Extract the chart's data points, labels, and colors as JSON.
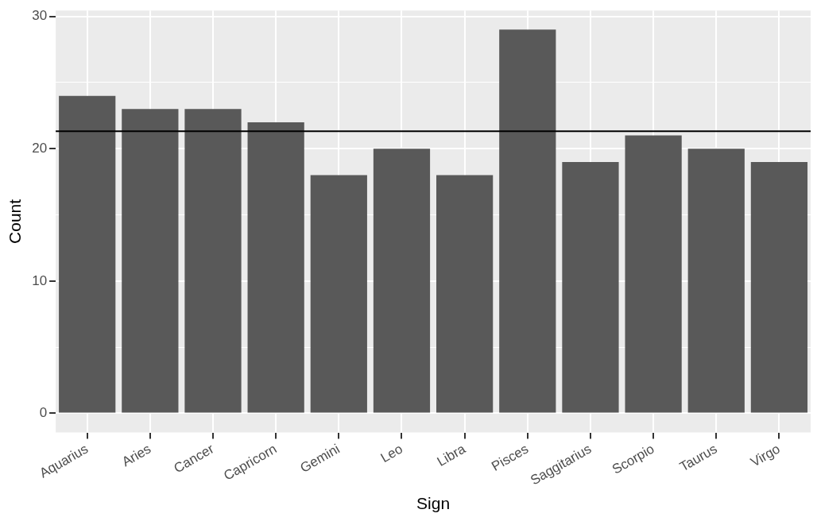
{
  "chart_data": {
    "type": "bar",
    "xlabel": "Sign",
    "ylabel": "Count",
    "categories": [
      "Aquarius",
      "Aries",
      "Cancer",
      "Capricorn",
      "Gemini",
      "Leo",
      "Libra",
      "Pisces",
      "Saggitarius",
      "Scorpio",
      "Taurus",
      "Virgo"
    ],
    "values": [
      24,
      23,
      23,
      22,
      18,
      20,
      18,
      29,
      19,
      21,
      20,
      19
    ],
    "color": "#595959",
    "ylim": [
      -1.45,
      30.45
    ],
    "yticks": [
      0,
      {
        "value": 5,
        "label": null
      },
      10,
      {
        "value": 15,
        "label": null
      },
      20,
      {
        "value": 25,
        "label": null
      },
      30
    ],
    "grid": true,
    "legend": false,
    "ref_lines": [
      {
        "axis": "y",
        "value": 21.33,
        "color": "#000000",
        "line_style": "solid"
      }
    ]
  }
}
